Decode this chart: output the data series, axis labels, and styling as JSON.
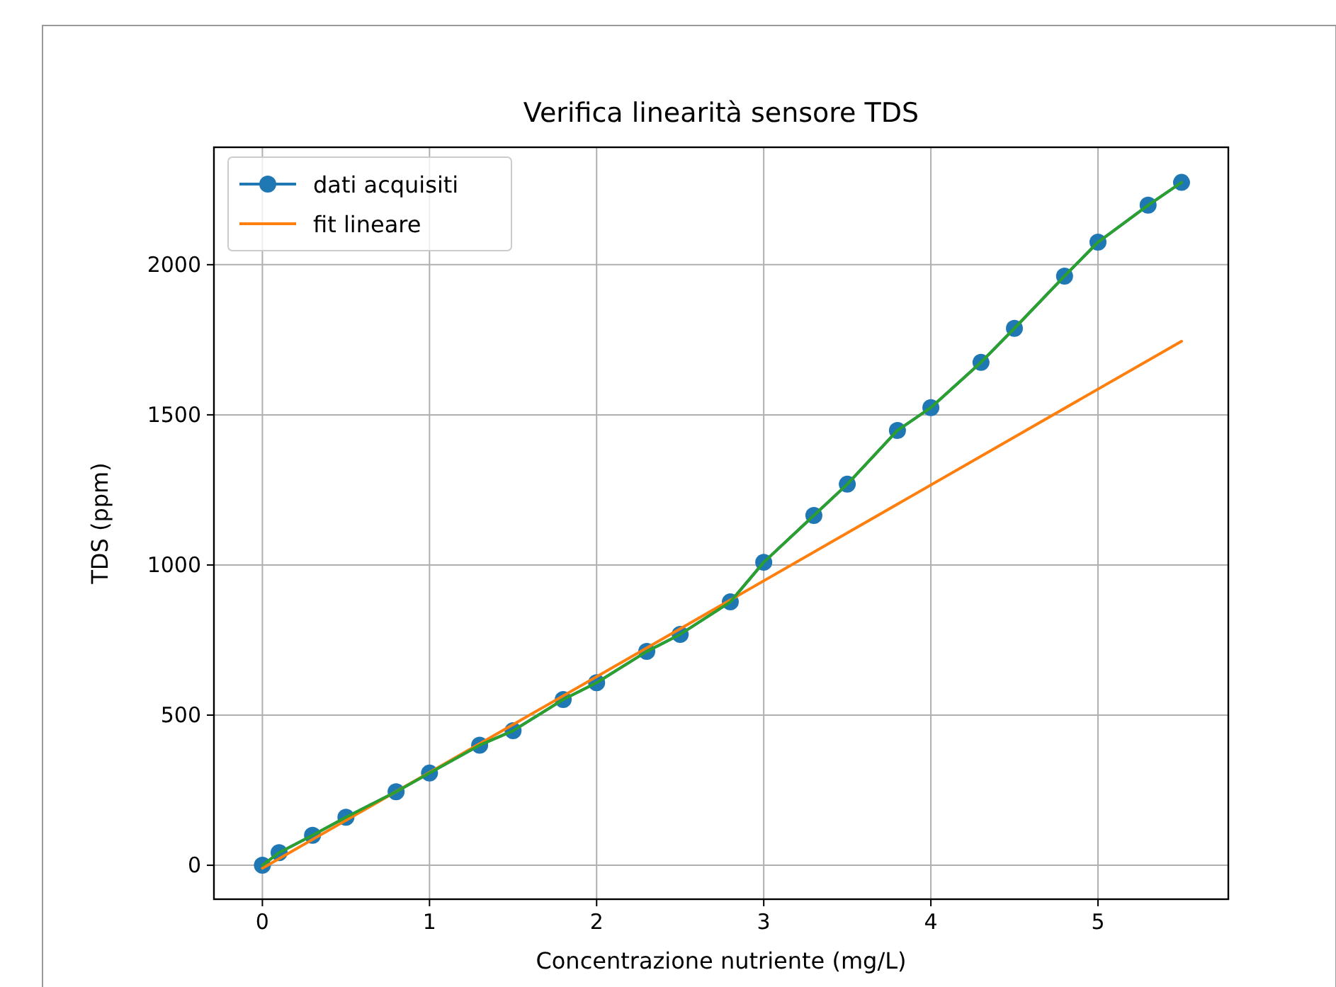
{
  "chart_data": {
    "type": "line",
    "title": "Verifica linearità sensore TDS",
    "xlabel": "Concentrazione nutriente (mg/L)",
    "ylabel": "TDS (ppm)",
    "x": [
      0,
      0.1,
      0.3,
      0.5,
      0.8,
      1.0,
      1.3,
      1.5,
      1.8,
      2.0,
      2.3,
      2.5,
      2.8,
      3.0,
      3.3,
      3.5,
      3.8,
      4.0,
      4.3,
      4.5,
      4.8,
      5.0,
      5.3,
      5.5
    ],
    "series": [
      {
        "name": "dati acquisiti",
        "color": "#1f77b4",
        "marker": "circle",
        "values": [
          0,
          42,
          100,
          160,
          245,
          307,
          400,
          448,
          552,
          608,
          712,
          769,
          877,
          1009,
          1165,
          1269,
          1448,
          1524,
          1675,
          1788,
          1962,
          2075,
          2198,
          2274
        ]
      },
      {
        "name": "fit lineare",
        "color": "#ff7f0e",
        "marker": "none",
        "x": [
          0,
          5.5
        ],
        "values": [
          -10,
          1745
        ]
      },
      {
        "color": "#2ca02c",
        "marker": "none",
        "values": [
          0,
          42,
          100,
          160,
          245,
          307,
          400,
          448,
          552,
          608,
          712,
          769,
          877,
          1009,
          1165,
          1269,
          1448,
          1524,
          1675,
          1788,
          1962,
          2075,
          2198,
          2274
        ]
      }
    ],
    "xlim": [
      -0.29,
      5.78
    ],
    "ylim": [
      -113,
      2391
    ],
    "xticks": [
      0,
      1,
      2,
      3,
      4,
      5
    ],
    "yticks": [
      0,
      500,
      1000,
      1500,
      2000
    ],
    "grid": true,
    "legend": "top left"
  }
}
